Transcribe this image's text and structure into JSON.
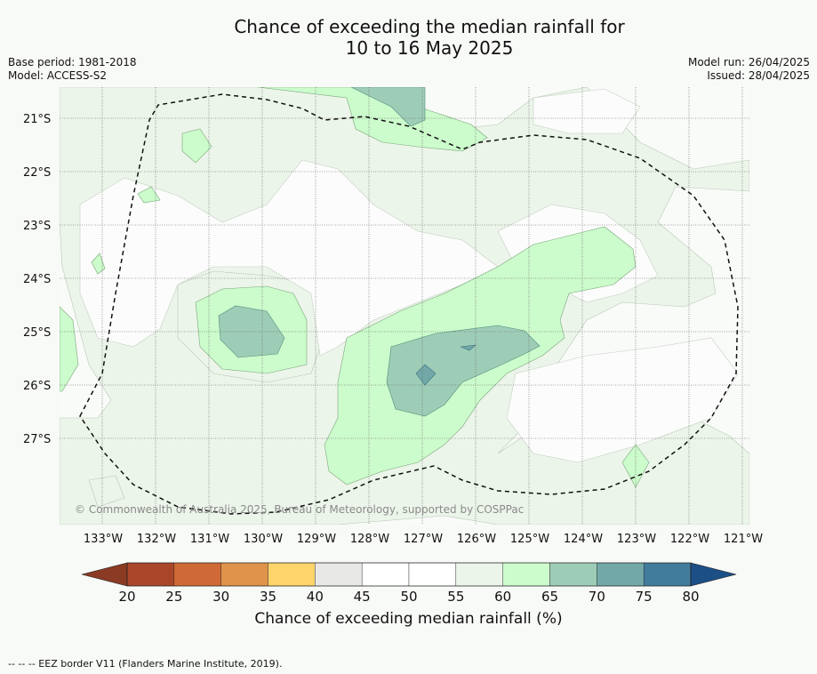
{
  "title_line1": "Chance of exceeding the median rainfall for",
  "title_line2": "10 to 16 May 2025",
  "base_period": "Base period: 1981-2018",
  "model": "Model: ACCESS-S2",
  "model_run": "Model run: 26/04/2025",
  "issued": "Issued: 28/04/2025",
  "copyright": "© Commonwealth of Australia 2025, Bureau of Meteorology, supported by COSPPac",
  "lat_labels": [
    "21°S",
    "22°S",
    "23°S",
    "24°S",
    "25°S",
    "26°S",
    "27°S"
  ],
  "lon_labels": [
    "133°W",
    "132°W",
    "131°W",
    "130°W",
    "129°W",
    "128°W",
    "127°W",
    "126°W",
    "125°W",
    "124°W",
    "123°W",
    "122°W",
    "121°W"
  ],
  "colorbar": {
    "label": "Chance of exceeding median rainfall (%)",
    "ticks": [
      "20",
      "25",
      "30",
      "35",
      "40",
      "45",
      "50",
      "55",
      "60",
      "65",
      "70",
      "75",
      "80"
    ],
    "colors": [
      "#a9462a",
      "#cf6a36",
      "#e0934a",
      "#ffd46a",
      "#e8e8e6",
      "#ffffff",
      "#ffffff",
      "#ecf5ea",
      "#ccfbcc",
      "#9ecdb7",
      "#72a9a8",
      "#427c9c"
    ],
    "under_color": "#8b3a23",
    "over_color": "#1c4f85"
  },
  "footnote": "--  --  -- EEZ border V11 (Flanders Marine Institute, 2019)."
}
